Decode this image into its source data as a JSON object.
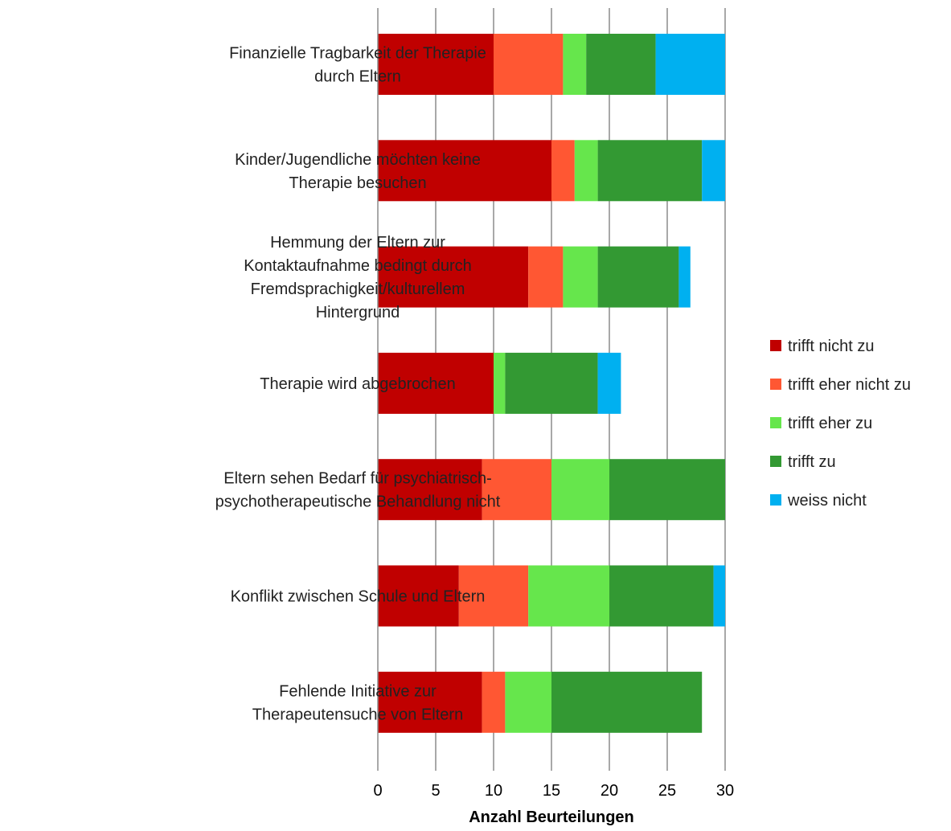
{
  "chart_data": {
    "type": "bar",
    "orientation": "horizontal",
    "stacked": true,
    "title": "",
    "xlabel": "Anzahl Beurteilungen",
    "ylabel": "",
    "xlim": [
      0,
      30
    ],
    "xticks": [
      0,
      5,
      10,
      15,
      20,
      25,
      30
    ],
    "grid": "vertical",
    "legend_position": "right",
    "categories": [
      [
        "Finanzielle Tragbarkeit der Therapie",
        "durch Eltern"
      ],
      [
        "Kinder/Jugendliche möchten keine",
        "Therapie besuchen"
      ],
      [
        "Hemmung der Eltern zur",
        "Kontaktaufnahme bedingt durch",
        "Fremdsprachigkeit/kulturellem",
        "Hintergrund"
      ],
      [
        "Therapie wird abgebrochen"
      ],
      [
        "Eltern sehen Bedarf für psychiatrisch-",
        "psychotherapeutische Behandlung nicht"
      ],
      [
        "Konflikt zwischen Schule und Eltern"
      ],
      [
        "Fehlende Initiative zur",
        "Therapeutensuche von Eltern"
      ]
    ],
    "series": [
      {
        "name": "trifft nicht zu",
        "color": "#C00000",
        "values": [
          10,
          15,
          13,
          10,
          9,
          7,
          9
        ]
      },
      {
        "name": "trifft eher nicht zu",
        "color": "#FF5733",
        "values": [
          6,
          2,
          3,
          0,
          6,
          6,
          2
        ]
      },
      {
        "name": "trifft eher zu",
        "color": "#66E64C",
        "values": [
          2,
          2,
          3,
          1,
          5,
          7,
          4
        ]
      },
      {
        "name": "trifft zu",
        "color": "#339933",
        "values": [
          6,
          9,
          7,
          8,
          10,
          9,
          13
        ]
      },
      {
        "name": "weiss nicht",
        "color": "#00B0F0",
        "values": [
          6,
          2,
          1,
          2,
          0,
          1,
          0
        ]
      }
    ]
  }
}
